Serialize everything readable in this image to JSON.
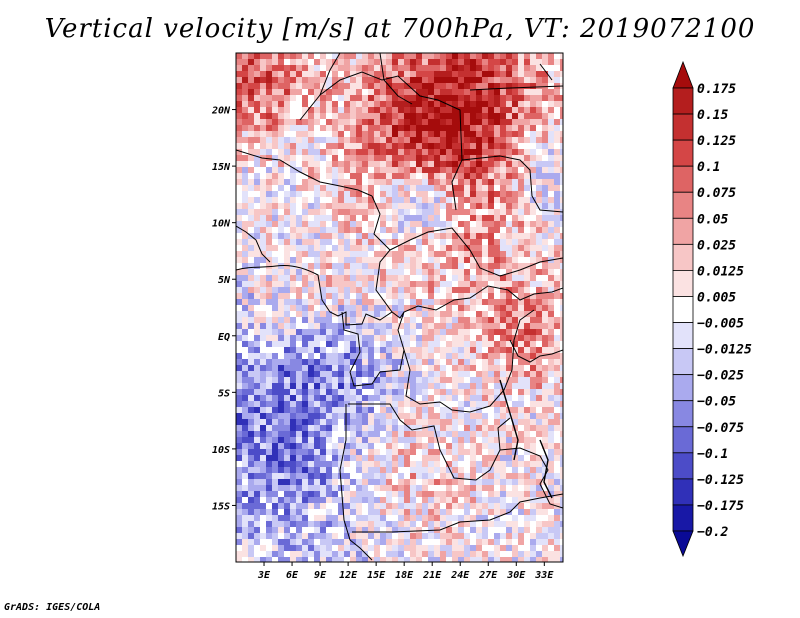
{
  "title": "Vertical velocity [m/s] at 700hPa, VT: 2019072100",
  "footer": "GrADS: IGES/COLA",
  "map": {
    "lon_range": [
      0,
      35
    ],
    "lat_range": [
      -20,
      25
    ],
    "lon_ticks": [
      3,
      6,
      9,
      12,
      15,
      18,
      21,
      24,
      27,
      30,
      33
    ],
    "lon_tick_labels": [
      "3E",
      "6E",
      "9E",
      "12E",
      "15E",
      "18E",
      "21E",
      "24E",
      "27E",
      "30E",
      "33E"
    ],
    "lat_ticks": [
      20,
      15,
      10,
      5,
      0,
      -5,
      -10,
      -15
    ],
    "lat_tick_labels": [
      "20N",
      "15N",
      "10N",
      "5N",
      "EQ",
      "5S",
      "10S",
      "15S"
    ]
  },
  "colorbar": {
    "labels": [
      "0.175",
      "0.15",
      "0.125",
      "0.1",
      "0.075",
      "0.05",
      "0.025",
      "0.0125",
      "0.005",
      "−0.005",
      "−0.0125",
      "−0.025",
      "−0.05",
      "−0.075",
      "−0.1",
      "−0.125",
      "−0.175",
      "−0.2"
    ],
    "colors": [
      "#a50c0c",
      "#b41e1e",
      "#c43030",
      "#d44646",
      "#de6464",
      "#e88484",
      "#f0a4a4",
      "#f7c6c6",
      "#fbe2e2",
      "#ffffff",
      "#e2e2fa",
      "#c8c8f5",
      "#aaaaee",
      "#8888e2",
      "#6a6ad6",
      "#4c4cc8",
      "#3030b8",
      "#1818a6",
      "#0a0a96"
    ]
  }
}
